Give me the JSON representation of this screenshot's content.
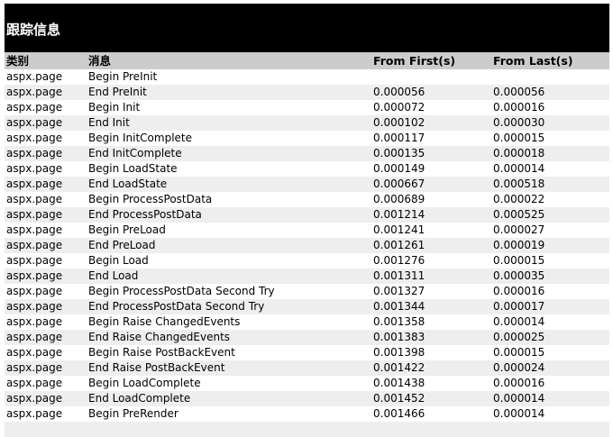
{
  "section_title": "跟踪信息",
  "columns": [
    "类别",
    "消息",
    "From First(s)",
    "From Last(s)"
  ],
  "rows": [
    [
      "aspx.page",
      "Begin PreInit",
      "",
      ""
    ],
    [
      "aspx.page",
      "End PreInit",
      "0.000056",
      "0.000056"
    ],
    [
      "aspx.page",
      "Begin Init",
      "0.000072",
      "0.000016"
    ],
    [
      "aspx.page",
      "End Init",
      "0.000102",
      "0.000030"
    ],
    [
      "aspx.page",
      "Begin InitComplete",
      "0.000117",
      "0.000015"
    ],
    [
      "aspx.page",
      "End InitComplete",
      "0.000135",
      "0.000018"
    ],
    [
      "aspx.page",
      "Begin LoadState",
      "0.000149",
      "0.000014"
    ],
    [
      "aspx.page",
      "End LoadState",
      "0.000667",
      "0.000518"
    ],
    [
      "aspx.page",
      "Begin ProcessPostData",
      "0.000689",
      "0.000022"
    ],
    [
      "aspx.page",
      "End ProcessPostData",
      "0.001214",
      "0.000525"
    ],
    [
      "aspx.page",
      "Begin PreLoad",
      "0.001241",
      "0.000027"
    ],
    [
      "aspx.page",
      "End PreLoad",
      "0.001261",
      "0.000019"
    ],
    [
      "aspx.page",
      "Begin Load",
      "0.001276",
      "0.000015"
    ],
    [
      "aspx.page",
      "End Load",
      "0.001311",
      "0.000035"
    ],
    [
      "aspx.page",
      "Begin ProcessPostData Second Try",
      "0.001327",
      "0.000016"
    ],
    [
      "aspx.page",
      "End ProcessPostData Second Try",
      "0.001344",
      "0.000017"
    ],
    [
      "aspx.page",
      "Begin Raise ChangedEvents",
      "0.001358",
      "0.000014"
    ],
    [
      "aspx.page",
      "End Raise ChangedEvents",
      "0.001383",
      "0.000025"
    ],
    [
      "aspx.page",
      "Begin Raise PostBackEvent",
      "0.001398",
      "0.000015"
    ],
    [
      "aspx.page",
      "End Raise PostBackEvent",
      "0.001422",
      "0.000024"
    ],
    [
      "aspx.page",
      "Begin LoadComplete",
      "0.001438",
      "0.000016"
    ],
    [
      "aspx.page",
      "End LoadComplete",
      "0.001452",
      "0.000014"
    ],
    [
      "aspx.page",
      "Begin PreRender",
      "0.001466",
      "0.000014"
    ]
  ]
}
